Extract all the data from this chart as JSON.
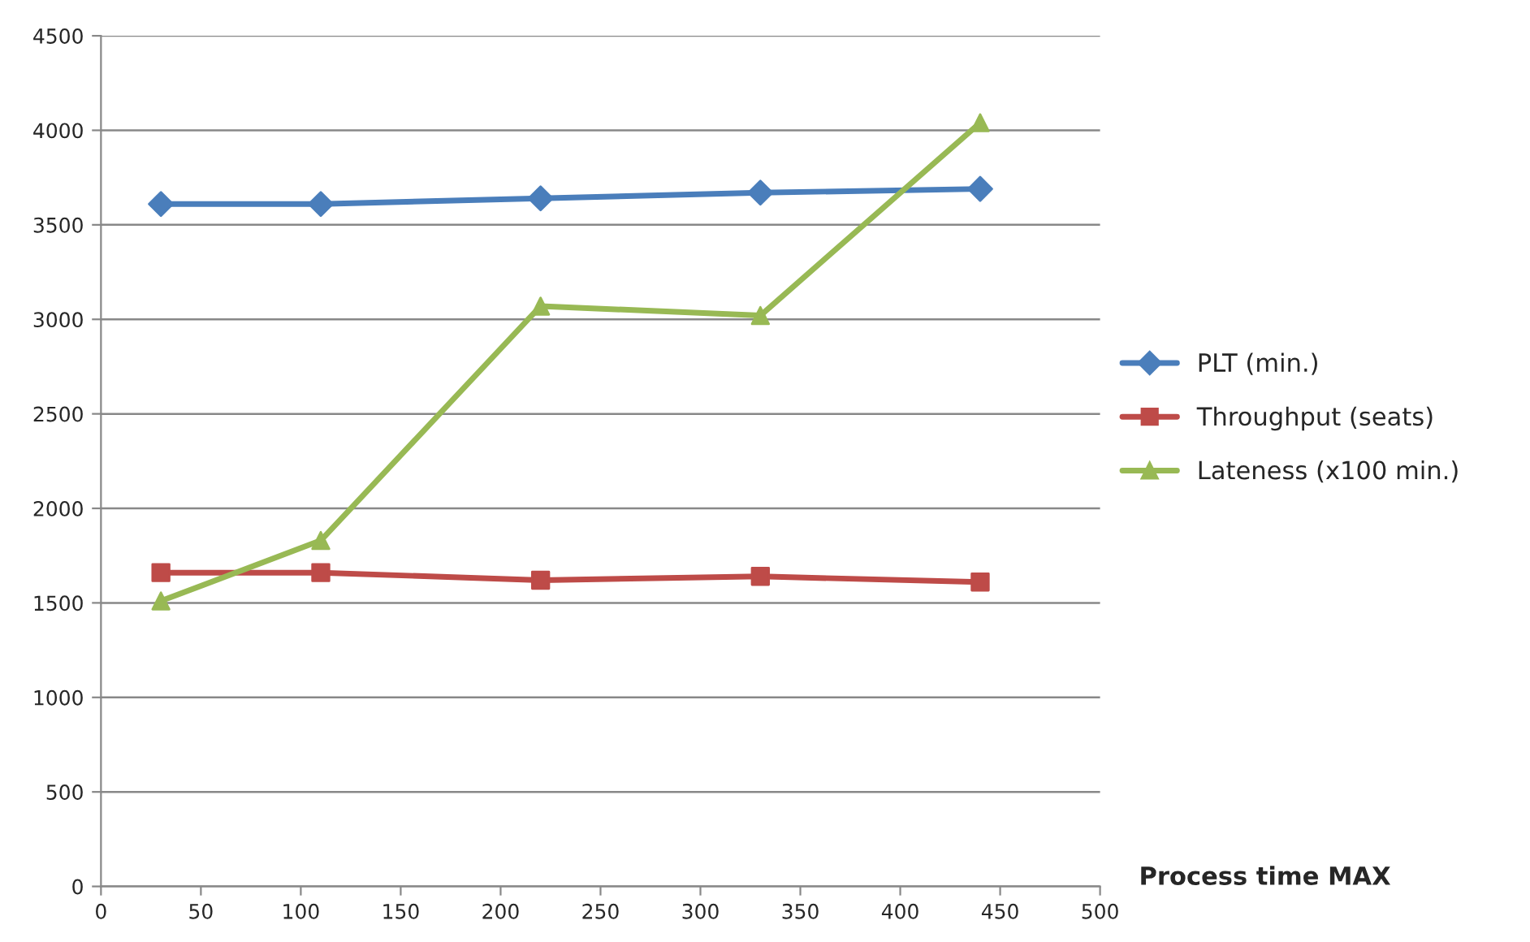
{
  "chart_data": {
    "type": "line",
    "xlabel": "Process time MAX",
    "x": [
      30,
      110,
      220,
      330,
      440
    ],
    "series": [
      {
        "name": "PLT (min.)",
        "color": "#4a7ebb",
        "marker": "diamond",
        "values": [
          3610,
          3610,
          3640,
          3670,
          3690
        ]
      },
      {
        "name": "Throughput (seats)",
        "color": "#be4b48",
        "marker": "square",
        "values": [
          1660,
          1660,
          1620,
          1640,
          1610
        ]
      },
      {
        "name": "Lateness (x100 min.)",
        "color": "#98b954",
        "marker": "triangle",
        "values": [
          1510,
          1830,
          3070,
          3020,
          4040
        ]
      }
    ],
    "xlim": [
      0,
      500
    ],
    "xticks": [
      0,
      50,
      100,
      150,
      200,
      250,
      300,
      350,
      400,
      450,
      500
    ],
    "ylim": [
      0,
      4500
    ],
    "yticks": [
      0,
      500,
      1000,
      1500,
      2000,
      2500,
      3000,
      3500,
      4000,
      4500
    ],
    "grid": "y",
    "legend": "right"
  }
}
